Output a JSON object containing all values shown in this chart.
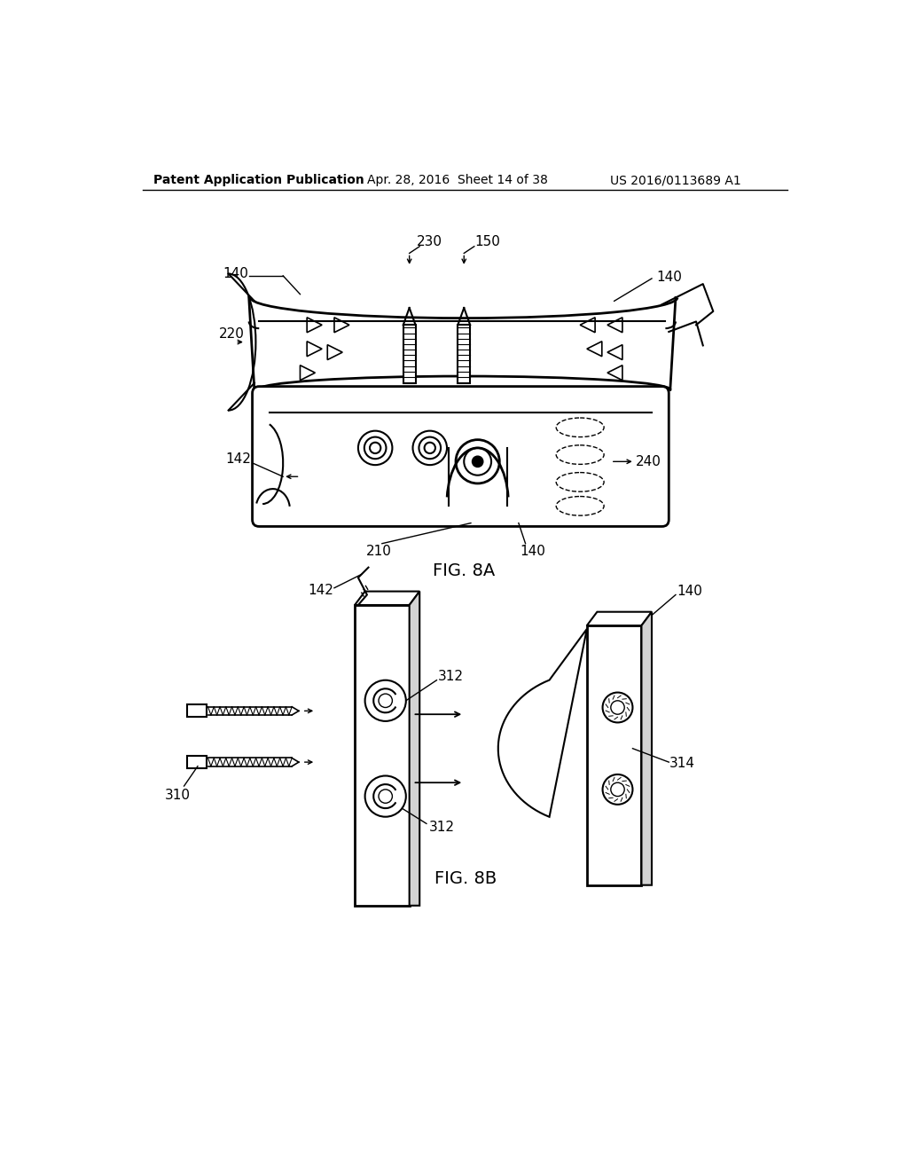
{
  "bg_color": "#ffffff",
  "line_color": "#000000",
  "header_text": "Patent Application Publication",
  "header_date": "Apr. 28, 2016  Sheet 14 of 38",
  "header_patent": "US 2016/0113689 A1",
  "fig8a_label": "FIG. 8A",
  "fig8b_label": "FIG. 8B"
}
